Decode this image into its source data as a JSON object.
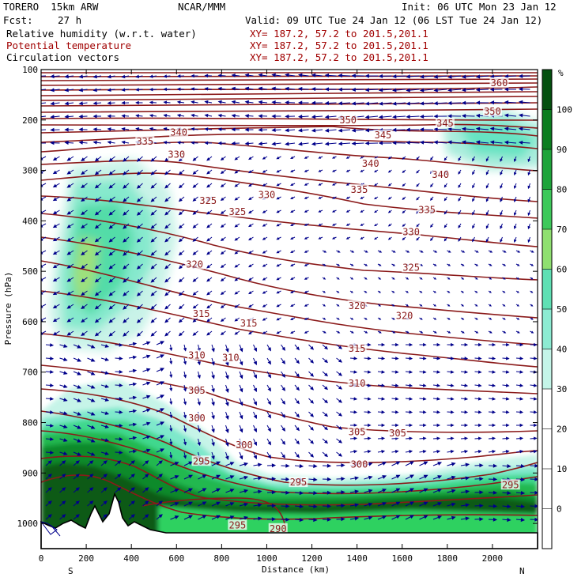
{
  "header": {
    "model": "TORERO  15km ARW",
    "org": "NCAR/MMM",
    "init": "Init: 06 UTC Mon 23 Jan 12",
    "fcst_label": "Fcst:",
    "fcst_value": "27 h",
    "valid": "Valid: 09 UTC Tue 24 Jan 12 (06 LST Tue 24 Jan 12)",
    "fields": [
      {
        "name": "Relative humidity (w.r.t. water)",
        "xy": "XY= 187.2, 57.2 to 201.5,201.1"
      },
      {
        "name": "Potential temperature",
        "xy": "XY= 187.2, 57.2 to 201.5,201.1"
      },
      {
        "name": "Circulation vectors",
        "xy": "XY= 187.2, 57.2 to 201.5,201.1"
      }
    ]
  },
  "colors": {
    "theta_contour": "#8b1a1a",
    "vectors": "#00008b",
    "terrain": "#000000",
    "rh_fills": [
      "#d9f5ee",
      "#a6ecdf",
      "#66e3c2",
      "#3fd88e",
      "#22c25a",
      "#11a035",
      "#0a7a1f",
      "#055314",
      "#8fe070"
    ]
  },
  "chart_data": {
    "type": "cross-section",
    "xlabel": "Distance (km)",
    "ylabel": "Pressure (hPa)",
    "x_ticks": [
      0,
      200,
      400,
      600,
      800,
      1000,
      1200,
      1400,
      1600,
      1800,
      2000
    ],
    "x_left_label": "S",
    "x_right_label": "N",
    "xlim": [
      0,
      2200
    ],
    "y_ticks": [
      100,
      200,
      300,
      400,
      500,
      600,
      700,
      800,
      900,
      1000
    ],
    "ylim": [
      100,
      1050
    ],
    "colorbar": {
      "unit": "%",
      "levels": [
        100,
        90,
        80,
        70,
        60,
        50,
        40,
        30,
        20,
        10,
        0
      ],
      "colors": [
        "#04500f",
        "#0b7d1f",
        "#1ea43a",
        "#3dc95a",
        "#8fe070",
        "#5fe0b4",
        "#8cebd2",
        "#c4f5e8",
        "#ffffff",
        "#ffffff",
        "#ffffff",
        "#ffffff"
      ]
    },
    "theta_contours": [
      {
        "label": "360",
        "x": 2030,
        "p": 128
      },
      {
        "label": "350",
        "x": 2000,
        "p": 185
      },
      {
        "label": "350",
        "x": 1360,
        "p": 202
      },
      {
        "label": "345",
        "x": 1790,
        "p": 208
      },
      {
        "label": "345",
        "x": 1515,
        "p": 232
      },
      {
        "label": "340",
        "x": 610,
        "p": 226
      },
      {
        "label": "335",
        "x": 460,
        "p": 244
      },
      {
        "label": "340",
        "x": 1460,
        "p": 288
      },
      {
        "label": "340",
        "x": 1770,
        "p": 310
      },
      {
        "label": "330",
        "x": 600,
        "p": 270
      },
      {
        "label": "335",
        "x": 1410,
        "p": 340
      },
      {
        "label": "325",
        "x": 740,
        "p": 362
      },
      {
        "label": "330",
        "x": 1000,
        "p": 350
      },
      {
        "label": "335",
        "x": 1710,
        "p": 380
      },
      {
        "label": "325",
        "x": 870,
        "p": 384
      },
      {
        "label": "330",
        "x": 1640,
        "p": 424
      },
      {
        "label": "320",
        "x": 680,
        "p": 488
      },
      {
        "label": "325",
        "x": 1640,
        "p": 494
      },
      {
        "label": "320",
        "x": 1400,
        "p": 570
      },
      {
        "label": "320",
        "x": 1610,
        "p": 590
      },
      {
        "label": "315",
        "x": 710,
        "p": 586
      },
      {
        "label": "315",
        "x": 920,
        "p": 605
      },
      {
        "label": "315",
        "x": 1400,
        "p": 655
      },
      {
        "label": "310",
        "x": 690,
        "p": 668
      },
      {
        "label": "310",
        "x": 840,
        "p": 673
      },
      {
        "label": "310",
        "x": 1400,
        "p": 724
      },
      {
        "label": "305",
        "x": 690,
        "p": 738
      },
      {
        "label": "305",
        "x": 1400,
        "p": 820
      },
      {
        "label": "305",
        "x": 1580,
        "p": 823
      },
      {
        "label": "300",
        "x": 690,
        "p": 793
      },
      {
        "label": "300",
        "x": 900,
        "p": 846
      },
      {
        "label": "300",
        "x": 1410,
        "p": 885
      },
      {
        "label": "295",
        "x": 710,
        "p": 878
      },
      {
        "label": "295",
        "x": 1140,
        "p": 920
      },
      {
        "label": "295",
        "x": 2080,
        "p": 925
      },
      {
        "label": "295",
        "x": 870,
        "p": 1005
      },
      {
        "label": "290",
        "x": 1050,
        "p": 1012
      }
    ]
  }
}
